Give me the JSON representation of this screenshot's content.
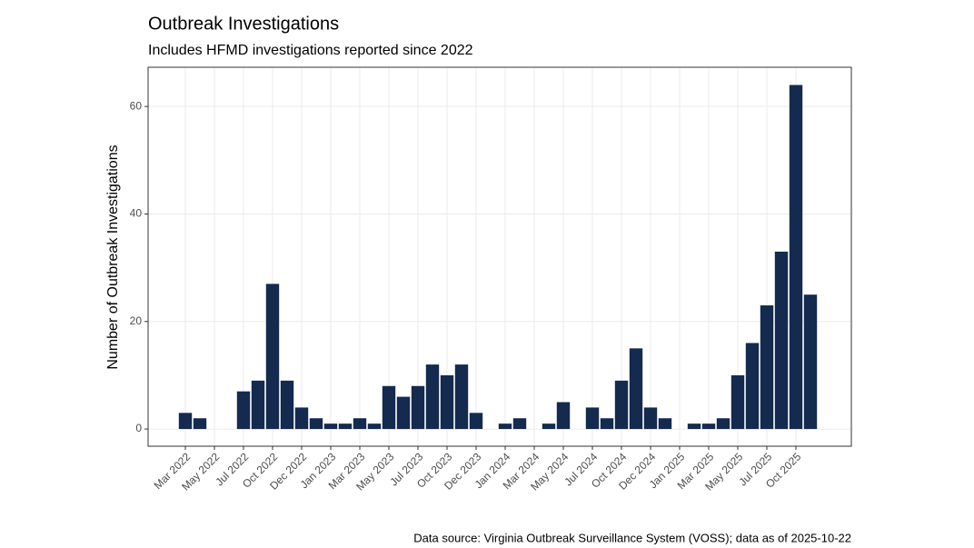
{
  "chart_data": {
    "type": "bar",
    "title": "Outbreak Investigations",
    "subtitle": "Includes HFMD investigations reported since 2022",
    "y_label": "Number of Outbreak Investigations",
    "caption": "Data source: Virginia Outbreak Surveillance System (VOSS); data as of 2025-10-22",
    "categories": [
      "Mar 2022",
      null,
      "May 2022",
      null,
      "Jul 2022",
      null,
      "Oct 2022",
      null,
      "Dec 2022",
      null,
      "Jan 2023",
      null,
      "Mar 2023",
      null,
      "May 2023",
      null,
      "Jul 2023",
      null,
      "Oct 2023",
      null,
      "Dec 2023",
      null,
      "Jan 2024",
      null,
      "Mar 2024",
      null,
      "May 2024",
      null,
      "Jul 2024",
      null,
      "Oct 2024",
      null,
      "Dec 2024",
      null,
      "Jan 2025",
      null,
      "Mar 2025",
      null,
      "May 2025",
      null,
      "Jul 2025",
      null,
      "Oct 2025",
      null
    ],
    "values": [
      3,
      2,
      0,
      0,
      7,
      9,
      27,
      9,
      4,
      2,
      1,
      1,
      2,
      1,
      8,
      6,
      8,
      12,
      10,
      12,
      3,
      0,
      1,
      2,
      0,
      1,
      5,
      0,
      4,
      2,
      9,
      15,
      4,
      2,
      0,
      1,
      1,
      2,
      10,
      16,
      23,
      33,
      64,
      25
    ],
    "color": "#142a4e",
    "ylim": [
      -3.2,
      67.3
    ],
    "yticks": [
      0,
      20,
      40,
      60
    ],
    "grid": true
  }
}
